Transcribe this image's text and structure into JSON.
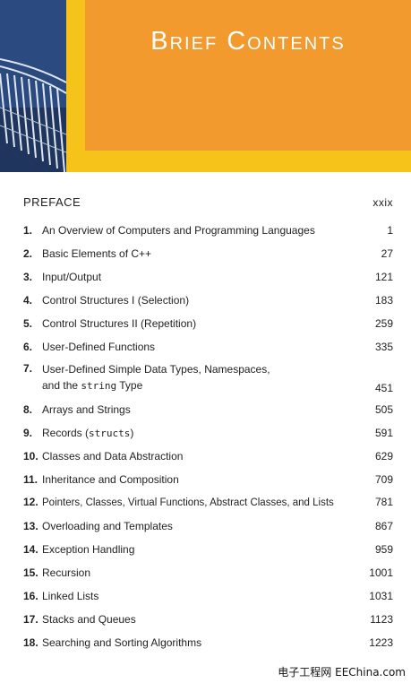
{
  "header": {
    "title": "Brief Contents"
  },
  "preface": {
    "label": "PREFACE",
    "page": "xxix"
  },
  "chapters": [
    {
      "num": "1.",
      "title": "An Overview of Computers and Programming Languages",
      "page": "1"
    },
    {
      "num": "2.",
      "title": "Basic Elements of C++",
      "page": "27"
    },
    {
      "num": "3.",
      "title": "Input/Output",
      "page": "121"
    },
    {
      "num": "4.",
      "title": "Control Structures I (Selection)",
      "page": "183"
    },
    {
      "num": "5.",
      "title": "Control Structures II (Repetition)",
      "page": "259"
    },
    {
      "num": "6.",
      "title": "User-Defined Functions",
      "page": "335"
    },
    {
      "num": "7.",
      "title_line1": "User-Defined Simple Data Types, Namespaces,",
      "title_line2_a": "and the ",
      "title_line2_code": "string",
      "title_line2_b": " Type",
      "page": "451"
    },
    {
      "num": "8.",
      "title": "Arrays and Strings",
      "page": "505"
    },
    {
      "num": "9.",
      "title_a": "Records (",
      "title_code": "structs",
      "title_b": ")",
      "page": "591"
    },
    {
      "num": "10.",
      "title": "Classes and Data Abstraction",
      "page": "629"
    },
    {
      "num": "11.",
      "title": "Inheritance and Composition",
      "page": "709"
    },
    {
      "num": "12.",
      "title": "Pointers, Classes, Virtual Functions, Abstract Classes, and Lists",
      "page": "781"
    },
    {
      "num": "13.",
      "title": "Overloading and Templates",
      "page": "867"
    },
    {
      "num": "14.",
      "title": "Exception Handling",
      "page": "959"
    },
    {
      "num": "15.",
      "title": "Recursion",
      "page": "1001"
    },
    {
      "num": "16.",
      "title": "Linked Lists",
      "page": "1031"
    },
    {
      "num": "17.",
      "title": "Stacks and Queues",
      "page": "1123"
    },
    {
      "num": "18.",
      "title": "Searching and Sorting Algorithms",
      "page": "1223"
    }
  ],
  "watermark": "电子工程网 EEChina.com",
  "colors": {
    "orange": "#f39a2e",
    "yellow": "#f6c31a",
    "photo_blue": "#2a4c82"
  }
}
